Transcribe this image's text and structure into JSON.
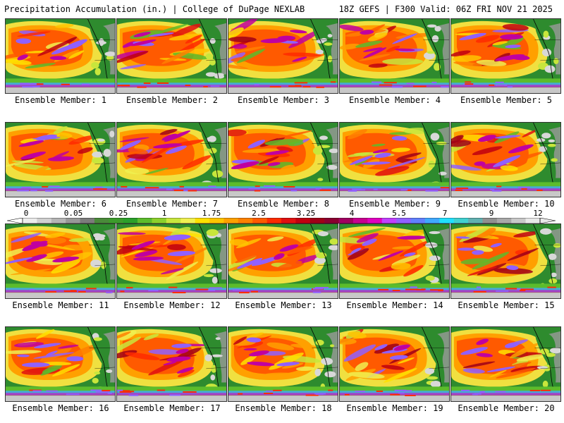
{
  "header": {
    "title": "Precipitation Accumulation (in.) | College of DuPage NEXLAB",
    "run_info": "18Z GEFS | F300 Valid: 06Z FRI NOV 21 2025"
  },
  "panels": [
    {
      "label": "Ensemble Member: 1"
    },
    {
      "label": "Ensemble Member: 2"
    },
    {
      "label": "Ensemble Member: 3"
    },
    {
      "label": "Ensemble Member: 4"
    },
    {
      "label": "Ensemble Member: 5"
    },
    {
      "label": "Ensemble Member: 6"
    },
    {
      "label": "Ensemble Member: 7"
    },
    {
      "label": "Ensemble Member: 8"
    },
    {
      "label": "Ensemble Member: 9"
    },
    {
      "label": "Ensemble Member: 10"
    },
    {
      "label": "Ensemble Member: 11"
    },
    {
      "label": "Ensemble Member: 12"
    },
    {
      "label": "Ensemble Member: 13"
    },
    {
      "label": "Ensemble Member: 14"
    },
    {
      "label": "Ensemble Member: 15"
    },
    {
      "label": "Ensemble Member: 16"
    },
    {
      "label": "Ensemble Member: 17"
    },
    {
      "label": "Ensemble Member: 18"
    },
    {
      "label": "Ensemble Member: 19"
    },
    {
      "label": "Ensemble Member: 20"
    }
  ],
  "colorbar": {
    "tick_labels": [
      "0",
      "0.05",
      "0.25",
      "1",
      "1.75",
      "2.5",
      "3.25",
      "4",
      "5.5",
      "7",
      "9",
      "12"
    ],
    "colors": [
      "#ececec",
      "#d0d0d0",
      "#b4b4b4",
      "#989898",
      "#7c7c7c",
      "#4a8a3a",
      "#3c9c2c",
      "#2aa02a",
      "#5cbc2c",
      "#8cd02c",
      "#c8e63c",
      "#f0f050",
      "#ffe000",
      "#ffc400",
      "#ffa000",
      "#ff8000",
      "#ff5a00",
      "#ff2a00",
      "#e01010",
      "#c00010",
      "#a00018",
      "#8a0030",
      "#a00060",
      "#c80090",
      "#e000c0",
      "#c040ff",
      "#9060ff",
      "#6080ff",
      "#40a8ff",
      "#20e0ff",
      "#40d0d0",
      "#60b0b0",
      "#909090",
      "#a8a8a8",
      "#c8c8c8",
      "#e8e8e8"
    ]
  }
}
